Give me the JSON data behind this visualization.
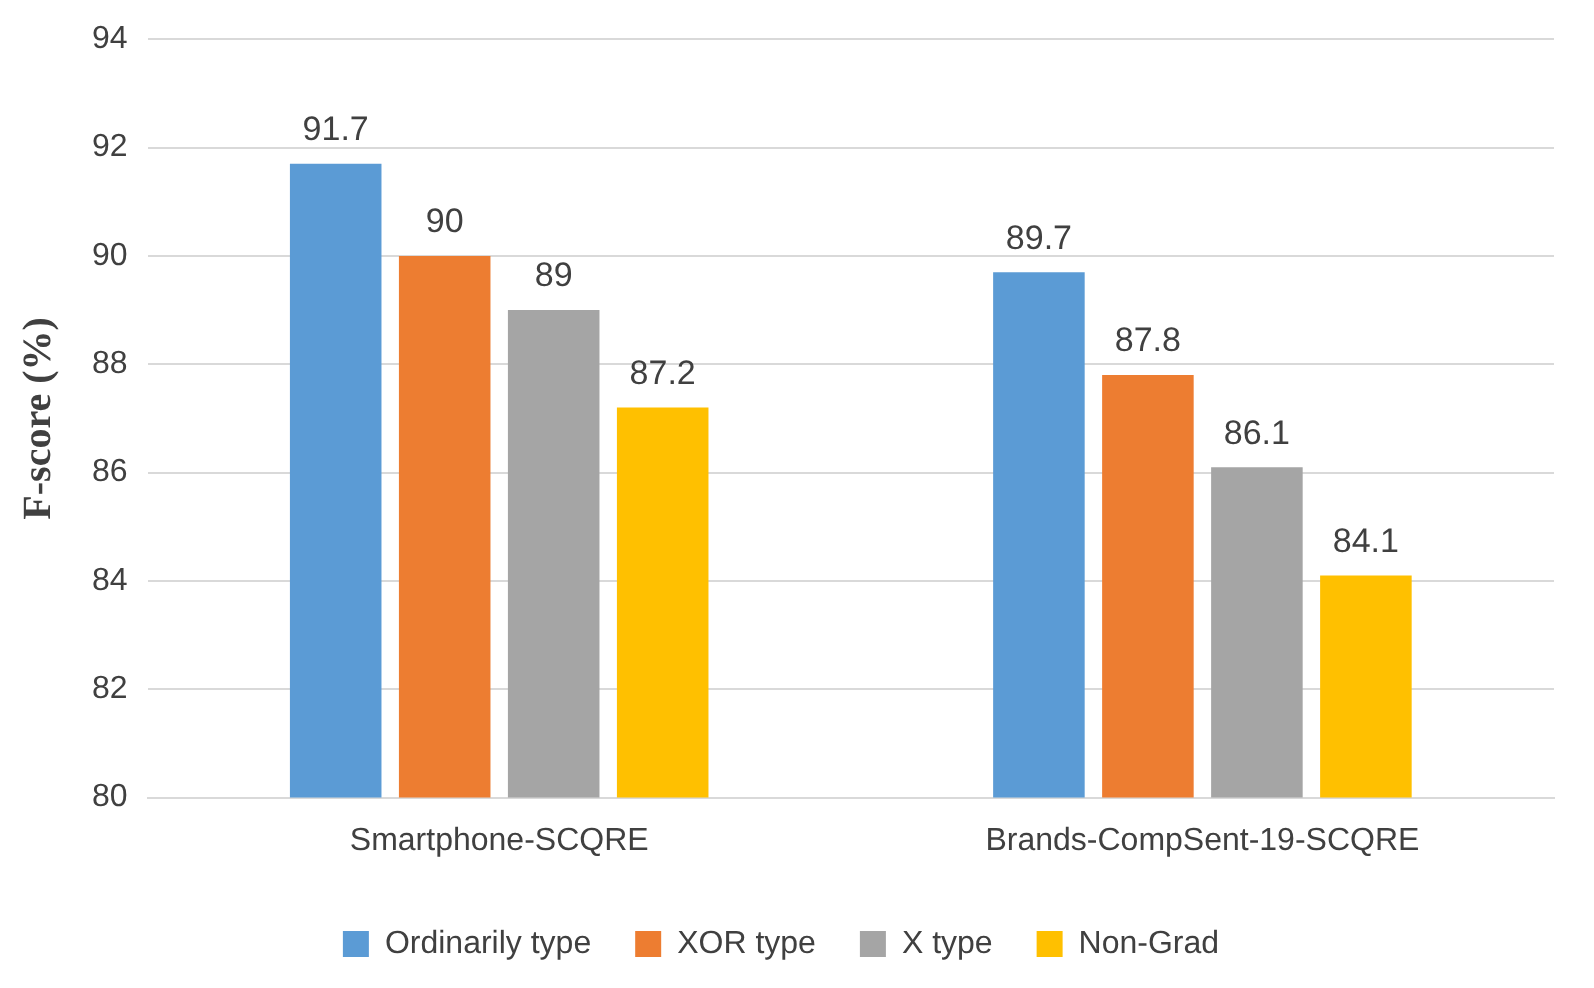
{
  "chart_data": {
    "type": "bar",
    "ylabel": "F-score (%)",
    "categories": [
      "Smartphone-SCQRE",
      "Brands-CompSent-19-SCQRE"
    ],
    "series": [
      {
        "name": "Ordinarily type",
        "color": "#5b9bd5",
        "values": [
          91.7,
          89.7
        ]
      },
      {
        "name": "XOR type",
        "color": "#ed7d31",
        "values": [
          90,
          87.8
        ]
      },
      {
        "name": "X type",
        "color": "#a5a5a5",
        "values": [
          89,
          86.1
        ]
      },
      {
        "name": "Non-Grad",
        "color": "#ffc000",
        "values": [
          87.2,
          84.1
        ]
      }
    ],
    "ylim": [
      80,
      94
    ],
    "yticks": [
      80,
      82,
      84,
      86,
      88,
      90,
      92,
      94
    ],
    "grid": "y",
    "legend": "bottom",
    "data_labels": true
  }
}
